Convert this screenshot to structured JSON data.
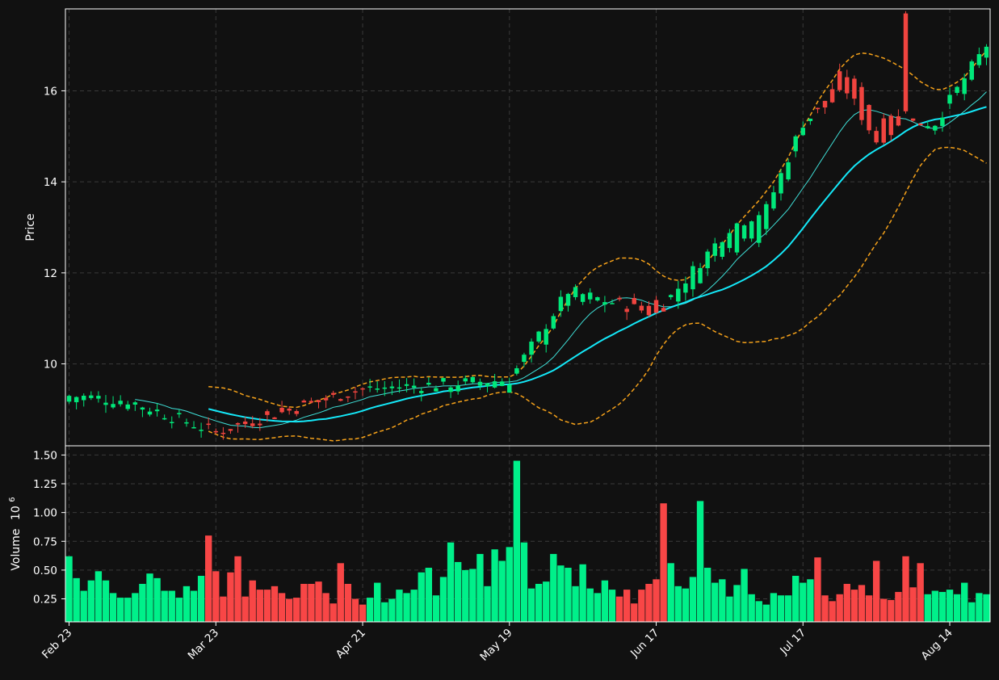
{
  "chart_data": {
    "type": "candlestick",
    "style": {
      "background": "#111111",
      "up_color": "#00e87a",
      "down_color": "#f0443f",
      "volume_up_color": "#00f08a",
      "volume_down_color": "#f84646",
      "ma_fast_color": "#3fe0d8",
      "ma_slow_color": "#14e8f8",
      "band_color": "#f6a21a",
      "grid": true
    },
    "price_panel": {
      "ylabel": "Price",
      "yticks": [
        10,
        12,
        14,
        16
      ],
      "ylim": [
        8.2,
        17.8
      ]
    },
    "volume_panel": {
      "ylabel": "Volume",
      "ylabel_exponent": "6",
      "yticks": [
        "0.25",
        "0.50",
        "0.75",
        "1.00",
        "1.25",
        "1.50"
      ],
      "ylim": [
        0.05,
        1.58
      ]
    },
    "x_ticks": [
      {
        "index": 0,
        "label": "Feb 23"
      },
      {
        "index": 20,
        "label": "Mar 23"
      },
      {
        "index": 40,
        "label": "Apr 21"
      },
      {
        "index": 60,
        "label": "May 19"
      },
      {
        "index": 80,
        "label": "Jun 17"
      },
      {
        "index": 100,
        "label": "Jul 17"
      },
      {
        "index": 120,
        "label": "Aug 14"
      }
    ],
    "n_bars": 126,
    "control_points": {
      "close": [
        [
          0,
          9.3
        ],
        [
          8,
          9.2
        ],
        [
          20,
          8.5
        ],
        [
          40,
          9.45
        ],
        [
          60,
          9.65
        ],
        [
          68,
          11.6
        ],
        [
          80,
          11.1
        ],
        [
          90,
          13.0
        ],
        [
          95,
          13.4
        ],
        [
          100,
          15.3
        ],
        [
          106,
          16.0
        ],
        [
          110,
          14.9
        ],
        [
          114,
          15.3
        ],
        [
          118,
          15.3
        ],
        [
          125,
          17.0
        ]
      ],
      "open_offset": [
        [
          0,
          -0.15
        ],
        [
          30,
          0.1
        ],
        [
          62,
          -0.2
        ],
        [
          66,
          -0.4
        ],
        [
          80,
          0.3
        ],
        [
          84,
          -0.5
        ],
        [
          97,
          -0.6
        ],
        [
          104,
          0.3
        ],
        [
          108,
          0.7
        ],
        [
          120,
          -0.3
        ],
        [
          125,
          -0.4
        ]
      ],
      "volume": [
        [
          0,
          0.62
        ],
        [
          1,
          0.43
        ],
        [
          2,
          0.32
        ],
        [
          3,
          0.41
        ],
        [
          4,
          0.49
        ],
        [
          5,
          0.41
        ],
        [
          6,
          0.3
        ],
        [
          7,
          0.26
        ],
        [
          8,
          0.26
        ],
        [
          9,
          0.3
        ],
        [
          10,
          0.38
        ],
        [
          11,
          0.47
        ],
        [
          12,
          0.43
        ],
        [
          13,
          0.32
        ],
        [
          14,
          0.32
        ],
        [
          15,
          0.26
        ],
        [
          16,
          0.36
        ],
        [
          17,
          0.32
        ],
        [
          18,
          0.45
        ],
        [
          19,
          0.8
        ],
        [
          20,
          0.49
        ],
        [
          21,
          0.27
        ],
        [
          22,
          0.48
        ],
        [
          23,
          0.62
        ],
        [
          24,
          0.27
        ],
        [
          25,
          0.41
        ],
        [
          26,
          0.33
        ],
        [
          27,
          0.33
        ],
        [
          28,
          0.36
        ],
        [
          29,
          0.3
        ],
        [
          30,
          0.25
        ],
        [
          31,
          0.26
        ],
        [
          32,
          0.38
        ],
        [
          33,
          0.38
        ],
        [
          34,
          0.4
        ],
        [
          35,
          0.3
        ],
        [
          36,
          0.21
        ],
        [
          37,
          0.56
        ],
        [
          38,
          0.38
        ],
        [
          39,
          0.25
        ],
        [
          40,
          0.2
        ],
        [
          41,
          0.26
        ],
        [
          42,
          0.39
        ],
        [
          43,
          0.22
        ],
        [
          44,
          0.25
        ],
        [
          45,
          0.33
        ],
        [
          46,
          0.3
        ],
        [
          47,
          0.33
        ],
        [
          48,
          0.48
        ],
        [
          49,
          0.52
        ],
        [
          50,
          0.28
        ],
        [
          51,
          0.44
        ],
        [
          52,
          0.74
        ],
        [
          53,
          0.57
        ],
        [
          54,
          0.5
        ],
        [
          55,
          0.51
        ],
        [
          56,
          0.64
        ],
        [
          57,
          0.36
        ],
        [
          58,
          0.68
        ],
        [
          59,
          0.58
        ],
        [
          60,
          0.7
        ],
        [
          61,
          1.45
        ],
        [
          62,
          0.74
        ],
        [
          63,
          0.34
        ],
        [
          64,
          0.38
        ],
        [
          65,
          0.4
        ],
        [
          66,
          0.64
        ],
        [
          67,
          0.54
        ],
        [
          68,
          0.52
        ],
        [
          69,
          0.36
        ],
        [
          70,
          0.55
        ],
        [
          71,
          0.34
        ],
        [
          72,
          0.3
        ],
        [
          73,
          0.41
        ],
        [
          74,
          0.33
        ],
        [
          75,
          0.27
        ],
        [
          76,
          0.33
        ],
        [
          77,
          0.21
        ],
        [
          78,
          0.33
        ],
        [
          79,
          0.38
        ],
        [
          80,
          0.42
        ],
        [
          81,
          1.08
        ],
        [
          82,
          0.56
        ],
        [
          83,
          0.36
        ],
        [
          84,
          0.34
        ],
        [
          85,
          0.44
        ],
        [
          86,
          1.1
        ],
        [
          87,
          0.52
        ],
        [
          88,
          0.39
        ],
        [
          89,
          0.42
        ],
        [
          90,
          0.27
        ],
        [
          91,
          0.37
        ],
        [
          92,
          0.51
        ],
        [
          93,
          0.29
        ],
        [
          94,
          0.23
        ],
        [
          95,
          0.2
        ],
        [
          96,
          0.3
        ],
        [
          97,
          0.28
        ],
        [
          98,
          0.28
        ],
        [
          99,
          0.45
        ],
        [
          100,
          0.39
        ],
        [
          101,
          0.42
        ],
        [
          102,
          0.61
        ],
        [
          103,
          0.28
        ],
        [
          104,
          0.23
        ],
        [
          105,
          0.29
        ],
        [
          106,
          0.38
        ],
        [
          107,
          0.33
        ],
        [
          108,
          0.37
        ],
        [
          109,
          0.28
        ],
        [
          110,
          0.58
        ],
        [
          111,
          0.25
        ],
        [
          112,
          0.24
        ],
        [
          113,
          0.31
        ],
        [
          114,
          0.62
        ],
        [
          115,
          0.35
        ],
        [
          116,
          0.56
        ],
        [
          117,
          0.29
        ],
        [
          118,
          0.32
        ],
        [
          119,
          0.31
        ],
        [
          120,
          0.33
        ],
        [
          121,
          0.29
        ],
        [
          122,
          0.39
        ],
        [
          123,
          0.22
        ],
        [
          124,
          0.3
        ],
        [
          125,
          0.29
        ]
      ]
    },
    "indicators": [
      {
        "name": "MA10",
        "period": 10,
        "width": 1
      },
      {
        "name": "MA20",
        "period": 20,
        "width": 2
      },
      {
        "name": "Bollinger 20, 2",
        "period": 20,
        "k": 2,
        "dashed": true
      }
    ]
  }
}
